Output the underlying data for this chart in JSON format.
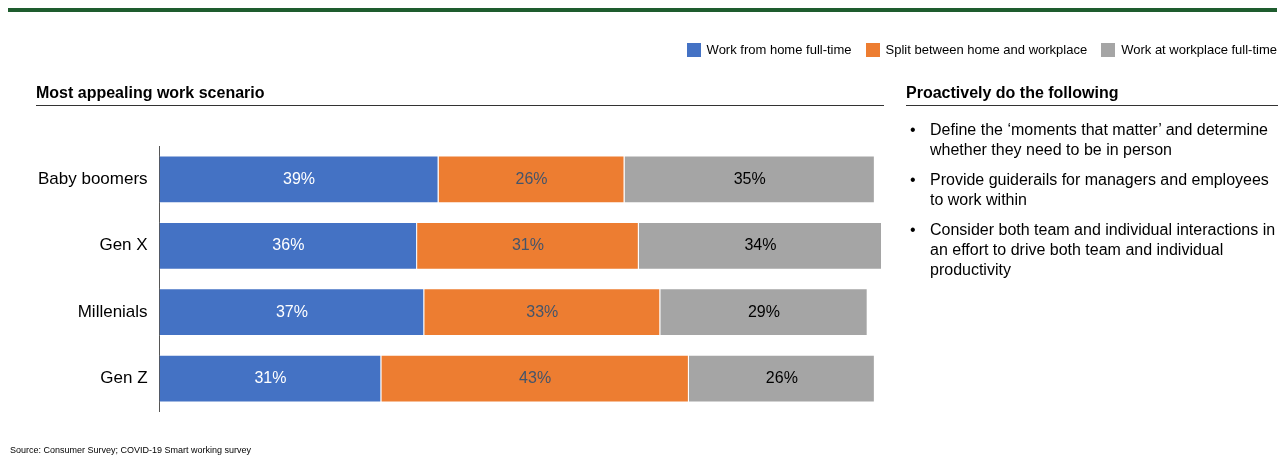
{
  "chart_data": [
    {
      "type": "bar",
      "orientation": "horizontal",
      "stacked": true,
      "title": "Most appealing work scenario",
      "categories": [
        "Baby boomers",
        "Gen X",
        "Millenials",
        "Gen Z"
      ],
      "series": [
        {
          "name": "Work from home full-time",
          "color": "#4472c4",
          "values": [
            39,
            36,
            37,
            31
          ],
          "value_labels": [
            "39%",
            "36%",
            "37%",
            "31%"
          ]
        },
        {
          "name": "Split between home and workplace",
          "color": "#ed7d31",
          "values": [
            26,
            31,
            33,
            43
          ],
          "value_labels": [
            "26%",
            "31%",
            "33%",
            "43%"
          ]
        },
        {
          "name": "Work at workplace full-time",
          "color": "#a5a5a5",
          "values": [
            35,
            34,
            29,
            26
          ],
          "value_labels": [
            "35%",
            "34%",
            "29%",
            "26%"
          ]
        }
      ],
      "legend": "top right",
      "grid": false,
      "annotations": [
        "Source: Consumer Survey; COVID-19 Smart working survey"
      ]
    },
    {
      "type": "other",
      "title": "Proactively do the following",
      "annotations": [
        "•",
        "Define the ‘moments that matter’ and determine whether they need to be in person",
        "•",
        "Provide guiderails for managers and employees to work within",
        "•",
        "Consider both team and individual interactions in an effort to drive both team and individual productivity"
      ]
    }
  ]
}
